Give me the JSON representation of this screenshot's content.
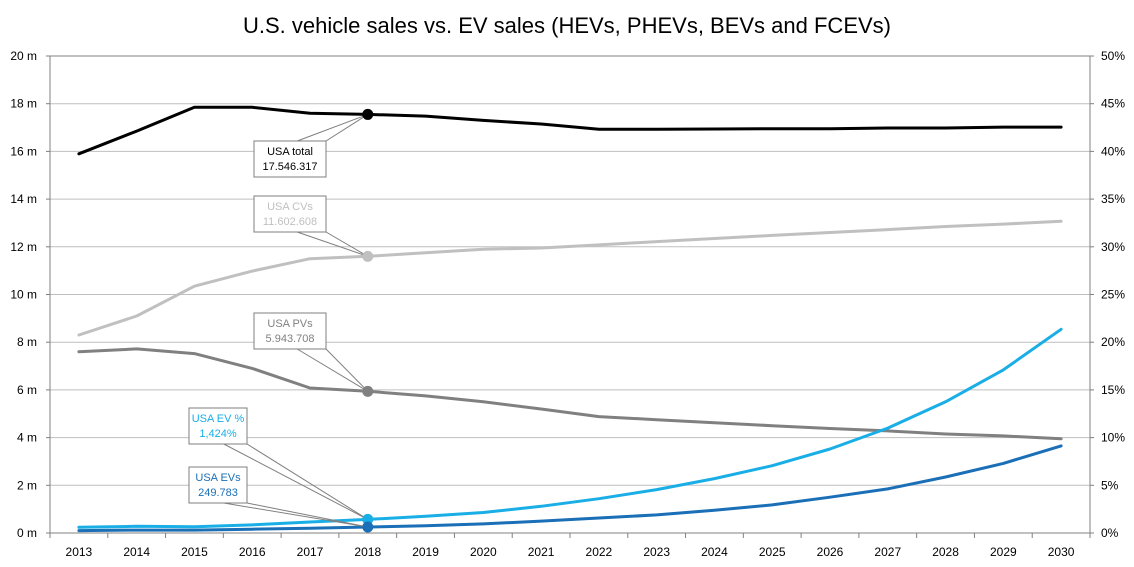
{
  "chart_data": {
    "type": "line",
    "title": "U.S. vehicle sales vs. EV sales (HEVs, PHEVs, BEVs and FCEVs)",
    "x": [
      "2013",
      "2014",
      "2015",
      "2016",
      "2017",
      "2018",
      "2019",
      "2020",
      "2021",
      "2022",
      "2023",
      "2024",
      "2025",
      "2026",
      "2027",
      "2028",
      "2029",
      "2030"
    ],
    "y_left": {
      "min": 0,
      "max": 20,
      "step": 2,
      "tick_labels": [
        "0 m",
        "2 m",
        "4 m",
        "6 m",
        "8 m",
        "10 m",
        "12 m",
        "14 m",
        "16 m",
        "18 m",
        "20 m"
      ]
    },
    "y_right": {
      "min": 0,
      "max": 50,
      "step": 5,
      "tick_labels": [
        "0%",
        "5%",
        "10%",
        "15%",
        "20%",
        "25%",
        "30%",
        "35%",
        "40%",
        "45%",
        "50%"
      ]
    },
    "grid": true,
    "series": [
      {
        "name": "USA total",
        "axis": "left",
        "color": "#000000",
        "width": 3,
        "values": [
          15.9,
          16.85,
          17.85,
          17.85,
          17.6,
          17.55,
          17.48,
          17.3,
          17.15,
          16.93,
          16.93,
          16.94,
          16.95,
          16.95,
          16.98,
          16.98,
          17.02,
          17.02
        ]
      },
      {
        "name": "USA CVs",
        "axis": "left",
        "color": "#c0c0c0",
        "width": 3,
        "values": [
          8.3,
          9.1,
          10.35,
          10.98,
          11.5,
          11.6,
          11.75,
          11.9,
          11.95,
          12.08,
          12.22,
          12.35,
          12.48,
          12.6,
          12.72,
          12.85,
          12.95,
          13.07
        ]
      },
      {
        "name": "USA PVs",
        "axis": "left",
        "color": "#808080",
        "width": 3,
        "values": [
          7.6,
          7.72,
          7.52,
          6.9,
          6.08,
          5.94,
          5.75,
          5.5,
          5.2,
          4.88,
          4.75,
          4.62,
          4.5,
          4.38,
          4.28,
          4.15,
          4.07,
          3.95
        ]
      },
      {
        "name": "USA EV %",
        "axis": "right",
        "color": "#19aee6",
        "width": 3,
        "values": [
          0.6,
          0.7,
          0.65,
          0.85,
          1.15,
          1.424,
          1.75,
          2.15,
          2.8,
          3.6,
          4.55,
          5.7,
          7.05,
          8.8,
          11.0,
          13.75,
          17.1,
          21.35
        ]
      },
      {
        "name": "USA EVs",
        "axis": "left",
        "color": "#1a6fb7",
        "width": 3,
        "values": [
          0.1,
          0.12,
          0.12,
          0.16,
          0.2,
          0.2498,
          0.3,
          0.38,
          0.5,
          0.63,
          0.76,
          0.95,
          1.18,
          1.5,
          1.85,
          2.35,
          2.92,
          3.65
        ]
      }
    ],
    "annotations": [
      {
        "series": "USA total",
        "x": "2018",
        "label": "USA total",
        "value": "17.546.317",
        "text_color": "#000000"
      },
      {
        "series": "USA CVs",
        "x": "2018",
        "label": "USA CVs",
        "value": "11.602.608",
        "text_color": "#c0c0c0"
      },
      {
        "series": "USA PVs",
        "x": "2018",
        "label": "USA PVs",
        "value": "5.943.708",
        "text_color": "#808080"
      },
      {
        "series": "USA EV %",
        "x": "2018",
        "label": "USA EV %",
        "value": "1,424%",
        "text_color": "#19aee6"
      },
      {
        "series": "USA EVs",
        "x": "2018",
        "label": "USA EVs",
        "value": "249.783",
        "text_color": "#1a6fb7"
      }
    ]
  }
}
